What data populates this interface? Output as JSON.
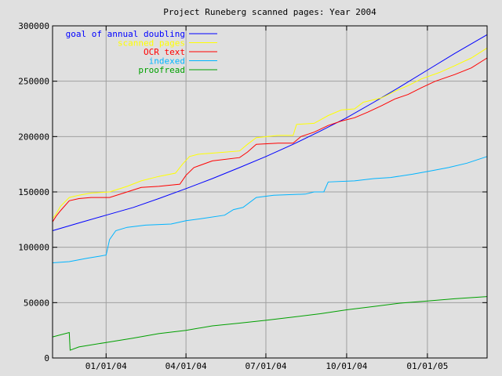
{
  "chart_data": {
    "type": "line",
    "title": "Project Runeberg scanned pages: Year 2004",
    "xlabel": "",
    "ylabel": "",
    "x_domain": [
      "2003-11-01",
      "2005-03-10"
    ],
    "ylim": [
      0,
      300000
    ],
    "y_ticks": [
      0,
      50000,
      100000,
      150000,
      200000,
      250000,
      300000
    ],
    "y_tick_labels": [
      "0",
      "50000",
      "100000",
      "150000",
      "200000",
      "250000",
      "300000"
    ],
    "x_ticks": [
      "2004-01-01",
      "2004-04-01",
      "2004-07-01",
      "2004-10-01",
      "2005-01-01"
    ],
    "x_tick_labels": [
      "01/01/04",
      "04/01/04",
      "07/01/04",
      "10/01/04",
      "01/01/05"
    ],
    "grid": true,
    "legend_position": "top-left",
    "series": [
      {
        "name": "goal of annual doubling",
        "color": "#0000ff",
        "x": [
          "2003-11-01",
          "2003-12-01",
          "2004-01-01",
          "2004-02-01",
          "2004-03-01",
          "2004-04-01",
          "2004-05-01",
          "2004-06-01",
          "2004-07-01",
          "2004-08-01",
          "2004-09-01",
          "2004-10-01",
          "2004-11-01",
          "2004-12-01",
          "2005-01-01",
          "2005-02-01",
          "2005-03-10"
        ],
        "values": [
          115000,
          122000,
          129000,
          136000,
          144000,
          153000,
          162000,
          172000,
          182000,
          193000,
          205000,
          217000,
          231000,
          245000,
          260000,
          275000,
          292000
        ]
      },
      {
        "name": "scanned pages",
        "color": "#ffff00",
        "x": [
          "2003-11-01",
          "2003-11-05",
          "2003-11-10",
          "2003-11-20",
          "2003-12-01",
          "2003-12-15",
          "2004-01-05",
          "2004-01-25",
          "2004-02-10",
          "2004-03-01",
          "2004-03-20",
          "2004-03-28",
          "2004-04-05",
          "2004-04-15",
          "2004-05-01",
          "2004-06-01",
          "2004-06-10",
          "2004-06-20",
          "2004-07-15",
          "2004-08-01",
          "2004-08-05",
          "2004-08-25",
          "2004-09-10",
          "2004-09-25",
          "2004-10-10",
          "2004-10-20",
          "2004-11-10",
          "2004-11-25",
          "2004-12-10",
          "2004-12-25",
          "2005-01-15",
          "2005-02-01",
          "2005-02-20",
          "2005-03-10"
        ],
        "values": [
          126000,
          130000,
          137000,
          145000,
          147000,
          149000,
          150000,
          155000,
          160000,
          164000,
          167000,
          175000,
          182000,
          184000,
          185000,
          187000,
          193000,
          199000,
          201000,
          201000,
          211000,
          212000,
          219000,
          224000,
          225000,
          231000,
          235000,
          241000,
          246000,
          252000,
          258000,
          264000,
          271000,
          280000
        ]
      },
      {
        "name": "OCR text",
        "color": "#ff0000",
        "x": [
          "2003-11-01",
          "2003-11-05",
          "2003-11-10",
          "2003-11-20",
          "2003-12-01",
          "2003-12-15",
          "2004-01-05",
          "2004-01-25",
          "2004-02-10",
          "2004-03-01",
          "2004-03-25",
          "2004-04-01",
          "2004-04-10",
          "2004-05-01",
          "2004-06-01",
          "2004-06-10",
          "2004-06-20",
          "2004-07-15",
          "2004-08-01",
          "2004-08-10",
          "2004-08-25",
          "2004-09-10",
          "2004-09-25",
          "2004-10-10",
          "2004-10-25",
          "2004-11-10",
          "2004-11-25",
          "2004-12-10",
          "2004-12-25",
          "2005-01-10",
          "2005-02-01",
          "2005-02-20",
          "2005-03-10"
        ],
        "values": [
          123000,
          128000,
          133000,
          142000,
          144000,
          145000,
          145000,
          150000,
          154000,
          155000,
          157000,
          165000,
          172000,
          178000,
          181000,
          186000,
          193000,
          194000,
          194000,
          200000,
          204000,
          210000,
          214000,
          217000,
          222000,
          228000,
          234000,
          238000,
          244000,
          250000,
          256000,
          262000,
          271000
        ]
      },
      {
        "name": "indexed",
        "color": "#00b4ff",
        "x": [
          "2003-11-01",
          "2003-11-20",
          "2003-12-10",
          "2003-12-25",
          "2004-01-01",
          "2004-01-05",
          "2004-01-12",
          "2004-01-25",
          "2004-02-15",
          "2004-03-15",
          "2004-04-01",
          "2004-04-20",
          "2004-05-15",
          "2004-05-25",
          "2004-06-05",
          "2004-06-20",
          "2004-07-10",
          "2004-08-15",
          "2004-08-25",
          "2004-09-05",
          "2004-09-10",
          "2004-10-10",
          "2004-11-01",
          "2004-11-20",
          "2004-12-15",
          "2005-01-05",
          "2005-01-25",
          "2005-02-15",
          "2005-03-10"
        ],
        "values": [
          86000,
          87000,
          90000,
          92000,
          93000,
          107000,
          115000,
          118000,
          120000,
          121000,
          124000,
          126000,
          129000,
          134000,
          136000,
          145000,
          147000,
          148000,
          150000,
          150000,
          159000,
          160000,
          162000,
          163000,
          166000,
          169000,
          172000,
          176000,
          182000
        ]
      },
      {
        "name": "proofread",
        "color": "#00a000",
        "x": [
          "2003-11-01",
          "2003-11-20",
          "2003-11-21",
          "2003-12-01",
          "2004-01-01",
          "2004-02-01",
          "2004-03-01",
          "2004-04-01",
          "2004-05-01",
          "2004-06-01",
          "2004-07-01",
          "2004-08-01",
          "2004-09-01",
          "2004-10-01",
          "2004-11-01",
          "2004-12-01",
          "2005-01-01",
          "2005-02-01",
          "2005-03-10"
        ],
        "values": [
          19000,
          23000,
          7000,
          10000,
          14000,
          18000,
          22000,
          25000,
          29000,
          31500,
          34000,
          37000,
          40000,
          43500,
          46500,
          49500,
          51500,
          53500,
          55500
        ]
      }
    ]
  }
}
